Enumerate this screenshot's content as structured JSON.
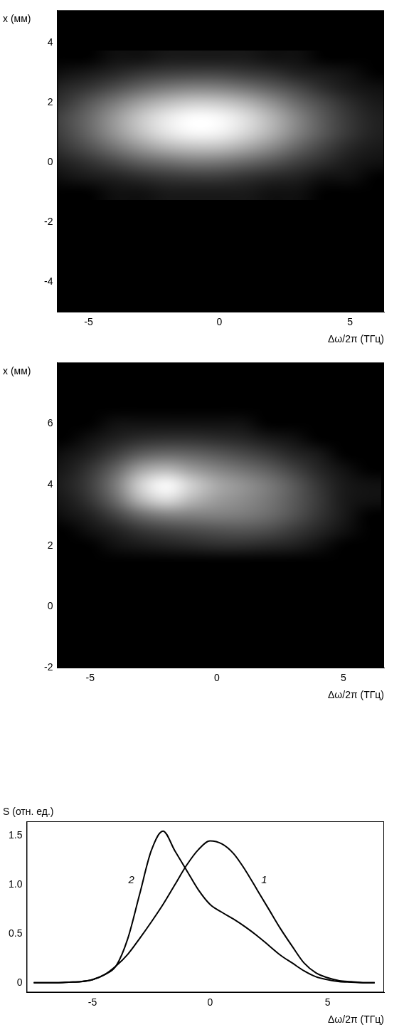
{
  "chart_data": [
    {
      "type": "heatmap",
      "x_label": "Δω/2π (ТГц)",
      "y_label": "x (мм)",
      "xlim": [
        -6.2,
        6.3
      ],
      "xticks": [
        -5,
        0,
        5
      ],
      "ylim": [
        -5,
        5.1
      ],
      "yticks": [
        -4,
        -2,
        0,
        2,
        4
      ],
      "cells": {
        "x": [
          -7,
          -6,
          -5,
          -4,
          -3,
          -2,
          -1,
          0,
          1,
          2,
          3,
          4,
          5,
          6
        ],
        "y": [
          -1,
          -0.5,
          0,
          0.5,
          1,
          1.5,
          2,
          2.5,
          3,
          3.5
        ],
        "z": [
          [
            0,
            0,
            0,
            0.01,
            0.01,
            0.02,
            0.02,
            0.02,
            0.02,
            0.01,
            0.01,
            0,
            0,
            0
          ],
          [
            0,
            0.01,
            0.02,
            0.03,
            0.05,
            0.07,
            0.08,
            0.08,
            0.06,
            0.04,
            0.03,
            0.01,
            0.01,
            0
          ],
          [
            0.01,
            0.03,
            0.06,
            0.11,
            0.18,
            0.23,
            0.27,
            0.26,
            0.21,
            0.15,
            0.09,
            0.05,
            0.02,
            0.01
          ],
          [
            0.02,
            0.07,
            0.14,
            0.26,
            0.4,
            0.53,
            0.6,
            0.59,
            0.48,
            0.34,
            0.2,
            0.1,
            0.04,
            0.02
          ],
          [
            0.04,
            0.1,
            0.21,
            0.39,
            0.61,
            0.81,
            0.92,
            0.89,
            0.73,
            0.52,
            0.31,
            0.16,
            0.07,
            0.03
          ],
          [
            0.04,
            0.11,
            0.22,
            0.41,
            0.64,
            0.84,
            0.96,
            0.93,
            0.77,
            0.54,
            0.32,
            0.16,
            0.07,
            0.03
          ],
          [
            0.03,
            0.07,
            0.16,
            0.29,
            0.45,
            0.59,
            0.67,
            0.65,
            0.54,
            0.38,
            0.22,
            0.12,
            0.05,
            0.02
          ],
          [
            0.01,
            0.04,
            0.07,
            0.13,
            0.21,
            0.28,
            0.32,
            0.31,
            0.25,
            0.18,
            0.11,
            0.05,
            0.02,
            0.01
          ],
          [
            0,
            0.01,
            0.02,
            0.04,
            0.07,
            0.09,
            0.1,
            0.1,
            0.08,
            0.06,
            0.03,
            0.02,
            0.01,
            0
          ],
          [
            0,
            0,
            0,
            0.01,
            0.01,
            0.02,
            0.02,
            0.02,
            0.02,
            0.01,
            0.01,
            0,
            0,
            0
          ]
        ]
      }
    },
    {
      "type": "heatmap",
      "x_label": "Δω/2π (ТГц)",
      "y_label": "x (мм)",
      "xlim": [
        -6.3,
        6.6
      ],
      "xticks": [
        -5,
        0,
        5
      ],
      "ylim": [
        -2,
        8
      ],
      "yticks": [
        -2,
        0,
        2,
        4,
        6
      ],
      "cells": {
        "x": [
          -7,
          -6,
          -5,
          -4,
          -3,
          -2,
          -1,
          0,
          1,
          2,
          3,
          4,
          5,
          6
        ],
        "y": [
          1.5,
          2,
          2.5,
          3,
          3.5,
          4,
          4.5,
          5,
          5.5,
          6,
          6.5
        ],
        "z": [
          [
            0,
            0,
            0,
            0,
            0,
            0,
            0,
            0,
            0,
            0,
            0,
            0,
            0,
            0
          ],
          [
            0,
            0,
            0,
            0.01,
            0.02,
            0.03,
            0.04,
            0.05,
            0.05,
            0.04,
            0.03,
            0.01,
            0,
            0
          ],
          [
            0,
            0,
            0.01,
            0.03,
            0.07,
            0.1,
            0.12,
            0.14,
            0.15,
            0.13,
            0.08,
            0.04,
            0.01,
            0
          ],
          [
            0,
            0.01,
            0.03,
            0.1,
            0.22,
            0.3,
            0.3,
            0.3,
            0.28,
            0.23,
            0.15,
            0.07,
            0.02,
            0
          ],
          [
            0.01,
            0.02,
            0.07,
            0.22,
            0.55,
            0.75,
            0.55,
            0.42,
            0.35,
            0.27,
            0.17,
            0.08,
            0.02,
            0.01
          ],
          [
            0.01,
            0.03,
            0.09,
            0.28,
            0.7,
            0.95,
            0.68,
            0.48,
            0.38,
            0.28,
            0.17,
            0.07,
            0.02,
            0.01
          ],
          [
            0.01,
            0.02,
            0.07,
            0.2,
            0.45,
            0.55,
            0.42,
            0.32,
            0.25,
            0.18,
            0.1,
            0.04,
            0.01,
            0
          ],
          [
            0,
            0.01,
            0.03,
            0.09,
            0.18,
            0.22,
            0.2,
            0.16,
            0.12,
            0.08,
            0.04,
            0.02,
            0,
            0
          ],
          [
            0,
            0,
            0.01,
            0.03,
            0.05,
            0.06,
            0.06,
            0.05,
            0.04,
            0.02,
            0.01,
            0,
            0,
            0
          ],
          [
            0,
            0,
            0,
            0.01,
            0.01,
            0.01,
            0.01,
            0.01,
            0.01,
            0,
            0,
            0,
            0,
            0
          ],
          [
            0,
            0,
            0,
            0,
            0,
            0,
            0,
            0,
            0,
            0,
            0,
            0,
            0,
            0
          ]
        ]
      }
    },
    {
      "type": "line",
      "x_label": "Δω/2π (ТГц)",
      "y_label": "S (отн. ед.)",
      "xlim": [
        -7.8,
        7.4
      ],
      "xticks": [
        -5,
        0,
        5
      ],
      "ylim": [
        -0.1,
        1.65
      ],
      "yticks": [
        0,
        0.5,
        {
          "value": 1,
          "label": "1.0"
        },
        1.5
      ],
      "x": [
        -7.5,
        -7,
        -6.5,
        -6,
        -5.5,
        -5,
        -4.5,
        -4,
        -3.5,
        -3,
        -2.5,
        -2,
        -1.5,
        -1,
        -0.5,
        0,
        0.5,
        1,
        1.5,
        2,
        2.5,
        3,
        3.5,
        4,
        4.5,
        5,
        5.5,
        6,
        6.5,
        7
      ],
      "series": [
        {
          "name": "1",
          "color": "#000000",
          "values": [
            0,
            0,
            0,
            0.005,
            0.01,
            0.03,
            0.08,
            0.17,
            0.29,
            0.45,
            0.62,
            0.8,
            1.0,
            1.2,
            1.36,
            1.45,
            1.42,
            1.32,
            1.15,
            0.95,
            0.75,
            0.55,
            0.37,
            0.2,
            0.1,
            0.05,
            0.02,
            0.01,
            0,
            0
          ]
        },
        {
          "name": "2",
          "color": "#000000",
          "values": [
            0,
            0,
            0,
            0.005,
            0.01,
            0.03,
            0.08,
            0.17,
            0.45,
            0.9,
            1.35,
            1.55,
            1.35,
            1.15,
            0.95,
            0.8,
            0.72,
            0.65,
            0.57,
            0.48,
            0.38,
            0.28,
            0.2,
            0.12,
            0.06,
            0.03,
            0.01,
            0.005,
            0,
            0
          ]
        }
      ],
      "annotations": [
        {
          "text": "1",
          "x": 2.3,
          "y": 1.05
        },
        {
          "text": "2",
          "x": -3.35,
          "y": 1.05
        }
      ]
    }
  ]
}
